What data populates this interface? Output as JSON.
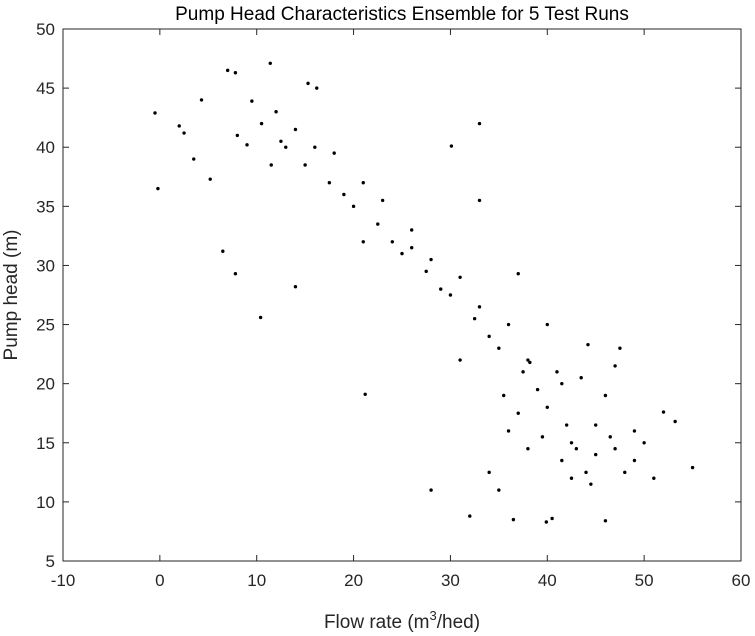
{
  "chart_data": {
    "type": "scatter",
    "title": "Pump Head Characteristics Ensemble for 5 Test Runs",
    "xlabel": {
      "prefix": "Flow rate (m",
      "superscript": "3",
      "suffix": "/hed)"
    },
    "ylabel": "Pump head (m)",
    "xlim": [
      -10,
      60
    ],
    "ylim": [
      5,
      50
    ],
    "xticks": [
      -10,
      0,
      10,
      20,
      30,
      40,
      50,
      60
    ],
    "yticks": [
      5,
      10,
      15,
      20,
      25,
      30,
      35,
      40,
      45,
      50
    ],
    "grid": false,
    "legend": "none",
    "marker_color": "#000000",
    "series": [
      {
        "points": [
          [
            7.0,
            46.5
          ],
          [
            7.8,
            46.3
          ],
          [
            11.4,
            47.1
          ],
          [
            15.3,
            45.4
          ],
          [
            16.2,
            45.0
          ],
          [
            9.5,
            43.9
          ],
          [
            4.3,
            44.0
          ],
          [
            2.0,
            41.8
          ],
          [
            -0.5,
            42.9
          ],
          [
            -0.2,
            36.5
          ],
          [
            2.5,
            41.2
          ],
          [
            3.5,
            39.0
          ],
          [
            5.2,
            37.3
          ],
          [
            6.5,
            31.2
          ],
          [
            7.8,
            29.3
          ],
          [
            10.4,
            25.6
          ],
          [
            14.0,
            28.2
          ],
          [
            21.2,
            19.1
          ],
          [
            33.0,
            42.0
          ],
          [
            30.1,
            40.1
          ],
          [
            37.0,
            29.3
          ],
          [
            38.2,
            21.8
          ],
          [
            33.0,
            35.5
          ],
          [
            31.0,
            22.0
          ],
          [
            26.0,
            31.5
          ],
          [
            21.0,
            32.0
          ],
          [
            28.0,
            11.0
          ],
          [
            32.0,
            8.8
          ],
          [
            36.5,
            8.5
          ],
          [
            39.9,
            8.3
          ],
          [
            40.5,
            8.6
          ],
          [
            46.0,
            8.4
          ],
          [
            55.0,
            12.9
          ],
          [
            53.2,
            16.8
          ],
          [
            52.0,
            17.6
          ],
          [
            50.0,
            15.0
          ],
          [
            47.0,
            21.5
          ],
          [
            47.5,
            23.0
          ],
          [
            46.0,
            19.0
          ],
          [
            48.0,
            12.5
          ],
          [
            49.0,
            13.5
          ],
          [
            51.0,
            12.0
          ],
          [
            44.2,
            23.3
          ],
          [
            43.5,
            20.5
          ],
          [
            41.5,
            20.0
          ],
          [
            40.0,
            25.0
          ],
          [
            38.0,
            14.5
          ],
          [
            35.0,
            11.0
          ],
          [
            34.0,
            12.5
          ],
          [
            36.0,
            16.0
          ],
          [
            12.5,
            40.5
          ],
          [
            13.0,
            40.0
          ],
          [
            15.0,
            38.5
          ],
          [
            17.5,
            37.0
          ],
          [
            20.0,
            35.0
          ],
          [
            22.5,
            33.5
          ],
          [
            25.0,
            31.0
          ],
          [
            27.5,
            29.5
          ],
          [
            30.0,
            27.5
          ],
          [
            32.5,
            25.5
          ],
          [
            35.0,
            23.0
          ],
          [
            37.5,
            21.0
          ],
          [
            40.0,
            18.0
          ],
          [
            42.5,
            15.0
          ],
          [
            45.0,
            14.0
          ],
          [
            43.0,
            14.5
          ],
          [
            41.5,
            13.5
          ],
          [
            44.0,
            12.5
          ],
          [
            46.5,
            15.5
          ],
          [
            42.0,
            16.5
          ],
          [
            8.0,
            41.0
          ],
          [
            9.0,
            40.2
          ],
          [
            10.5,
            42.0
          ],
          [
            11.5,
            38.5
          ],
          [
            12.0,
            43.0
          ],
          [
            14.0,
            41.5
          ],
          [
            16.0,
            40.0
          ],
          [
            18.0,
            39.5
          ],
          [
            19.0,
            36.0
          ],
          [
            21.0,
            37.0
          ],
          [
            23.0,
            35.5
          ],
          [
            24.0,
            32.0
          ],
          [
            26.0,
            33.0
          ],
          [
            28.0,
            30.5
          ],
          [
            29.0,
            28.0
          ],
          [
            31.0,
            29.0
          ],
          [
            33.0,
            26.5
          ],
          [
            34.0,
            24.0
          ],
          [
            36.0,
            25.0
          ],
          [
            38.0,
            22.0
          ],
          [
            39.0,
            19.5
          ],
          [
            41.0,
            21.0
          ],
          [
            45.0,
            16.5
          ],
          [
            47.0,
            14.5
          ],
          [
            49.0,
            16.0
          ],
          [
            44.5,
            11.5
          ],
          [
            42.5,
            12.0
          ],
          [
            39.5,
            15.5
          ],
          [
            37.0,
            17.5
          ],
          [
            35.5,
            19.0
          ]
        ]
      }
    ]
  }
}
